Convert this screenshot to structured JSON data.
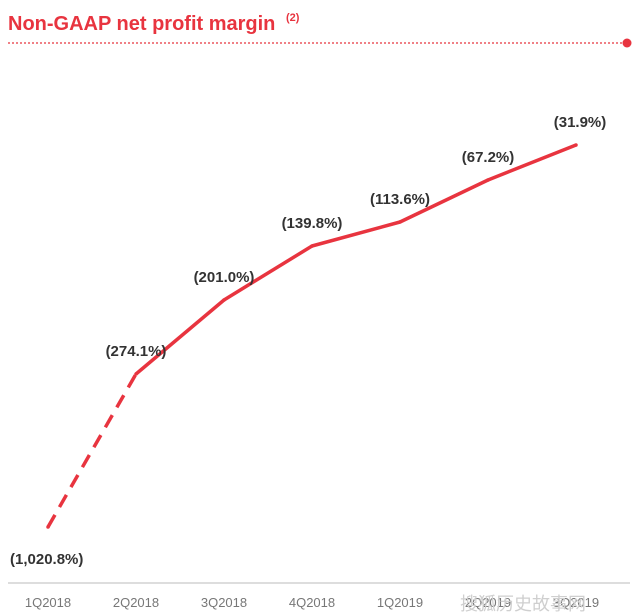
{
  "colors": {
    "accent": "#e8343f",
    "title": "#e8343f",
    "label": "#333333",
    "axis": "#bbbbbb",
    "tick": "#777777"
  },
  "chart_data": {
    "type": "line",
    "title": "Non-GAAP net profit margin",
    "title_footnote": "(2)",
    "categories": [
      "1Q2018",
      "2Q2018",
      "3Q2018",
      "4Q2018",
      "1Q2019",
      "2Q2019",
      "3Q2019"
    ],
    "values": [
      -1020.8,
      -274.1,
      -201.0,
      -139.8,
      -113.6,
      -67.2,
      -31.9
    ],
    "labels": [
      "(1,020.8%)",
      "(274.1%)",
      "(201.0%)",
      "(139.8%)",
      "(113.6%)",
      "(67.2%)",
      "(31.9%)"
    ],
    "dashed_segments": [
      0
    ],
    "ylabel": "",
    "xlabel": "",
    "grid": false,
    "y_axis_visible": false
  },
  "watermark": "搜狐历史故事网"
}
